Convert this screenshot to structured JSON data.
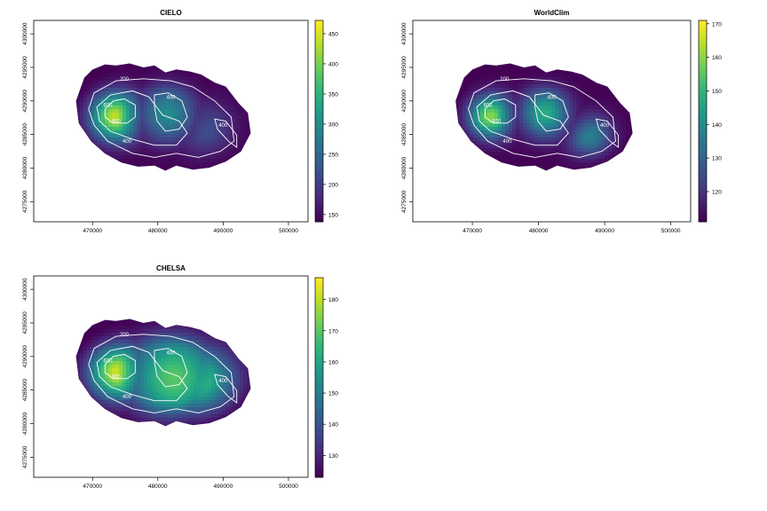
{
  "chart_data": [
    {
      "type": "heatmap",
      "title": "CIELO",
      "x_ticks": [
        470000,
        480000,
        490000,
        500000
      ],
      "y_ticks": [
        4275000,
        4280000,
        4285000,
        4290000,
        4295000,
        4300000
      ],
      "xlim": [
        461000,
        503000
      ],
      "ylim": [
        4272000,
        4302000
      ],
      "colorbar": {
        "min": 138,
        "max": 472,
        "ticks": [
          150,
          200,
          250,
          300,
          350,
          400,
          450
        ]
      },
      "peaks": [
        {
          "x": 472300,
          "y": 4287800,
          "value": 472,
          "r": 3000
        },
        {
          "x": 481500,
          "y": 4288200,
          "value": 300,
          "r": 3000
        },
        {
          "x": 488500,
          "y": 4285000,
          "value": 220,
          "r": 3500
        }
      ],
      "contour_labels": [
        "200",
        "400",
        "600",
        "800",
        "400",
        "400"
      ]
    },
    {
      "type": "heatmap",
      "title": "WorldClim",
      "x_ticks": [
        470000,
        480000,
        490000,
        500000
      ],
      "y_ticks": [
        4275000,
        4280000,
        4285000,
        4290000,
        4295000,
        4300000
      ],
      "xlim": [
        461000,
        503000
      ],
      "ylim": [
        4272000,
        4302000
      ],
      "colorbar": {
        "min": 111,
        "max": 171,
        "ticks": [
          120,
          130,
          140,
          150,
          160,
          170
        ]
      },
      "peaks": [
        {
          "x": 471800,
          "y": 4287800,
          "value": 171,
          "r": 2500
        },
        {
          "x": 481000,
          "y": 4288200,
          "value": 148,
          "r": 2500
        },
        {
          "x": 488500,
          "y": 4284000,
          "value": 142,
          "r": 2500
        }
      ],
      "contour_labels": [
        "200",
        "400",
        "600",
        "800",
        "400",
        "400"
      ]
    },
    {
      "type": "heatmap",
      "title": "CHELSA",
      "x_ticks": [
        470000,
        480000,
        490000,
        500000
      ],
      "y_ticks": [
        4275000,
        4280000,
        4285000,
        4290000,
        4295000,
        4300000
      ],
      "xlim": [
        461000,
        503000
      ],
      "ylim": [
        4272000,
        4302000
      ],
      "colorbar": {
        "min": 123,
        "max": 187,
        "ticks": [
          130,
          140,
          150,
          160,
          170,
          180
        ]
      },
      "peaks": [
        {
          "x": 472300,
          "y": 4287800,
          "value": 187,
          "r": 3500
        },
        {
          "x": 482500,
          "y": 4286800,
          "value": 170,
          "r": 5000
        },
        {
          "x": 488000,
          "y": 4285500,
          "value": 162,
          "r": 5000
        }
      ],
      "contour_labels": [
        "200",
        "400",
        "600",
        "800",
        "400",
        "400"
      ]
    }
  ]
}
